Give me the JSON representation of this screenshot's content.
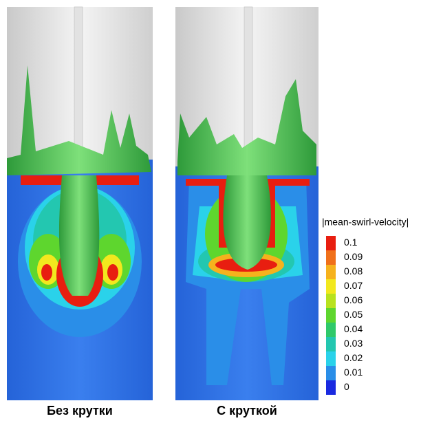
{
  "panels": [
    {
      "caption": "Без крутки"
    },
    {
      "caption": "С круткой"
    }
  ],
  "colorbar": {
    "title": "|mean-swirl-velocity|",
    "labels": [
      "0.1",
      "0.09",
      "0.08",
      "0.07",
      "0.06",
      "0.05",
      "0.04",
      "0.03",
      "0.02",
      "0.01",
      "0"
    ],
    "colors": [
      "#e81e10",
      "#f0701a",
      "#f6b21d",
      "#f2e81e",
      "#b8e21e",
      "#5ed62e",
      "#2fc96a",
      "#23c7b0",
      "#2ad2ea",
      "#2a8ee8",
      "#1a2ae0"
    ]
  }
}
